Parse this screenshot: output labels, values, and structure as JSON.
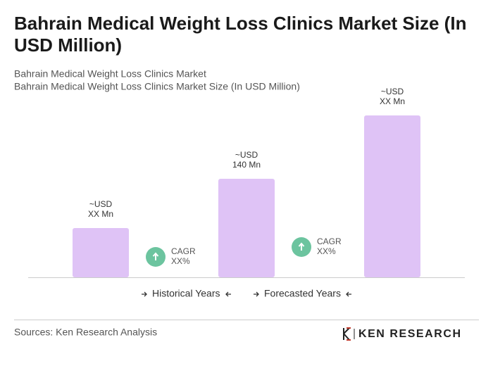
{
  "chart_data": {
    "type": "bar",
    "title": "Bahrain Medical Weight Loss Clinics Market Size (In USD Million)",
    "subtitles": [
      "Bahrain Medical Weight Loss Clinics Market",
      "Bahrain Medical Weight Loss Clinics Market Size (In USD Million)"
    ],
    "values": [
      70,
      140,
      230
    ],
    "value_labels": [
      [
        "~USD",
        "XX Mn"
      ],
      [
        "~USD",
        "140 Mn"
      ],
      [
        "~USD",
        "XX Mn"
      ]
    ],
    "color": "#dfc3f6",
    "annotations": [
      {
        "label": "CAGR",
        "value": "XX%"
      },
      {
        "label": "CAGR",
        "value": "XX%"
      }
    ],
    "annotation_color": "#6cc49f",
    "legend": [
      "Historical Years",
      "Forecasted Years"
    ],
    "source": "Sources: Ken Research Analysis",
    "brand": "KEN RESEARCH"
  }
}
